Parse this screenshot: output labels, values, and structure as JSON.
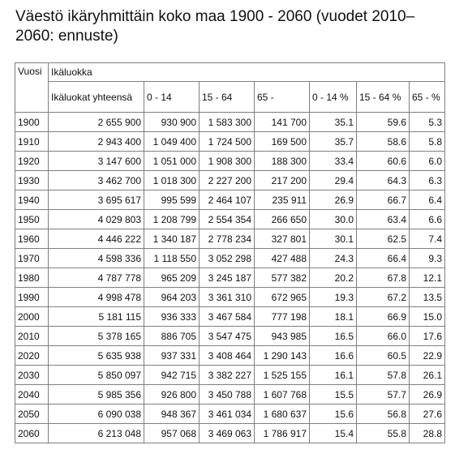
{
  "title": "Väestö ikäryhmittäin koko maa 1900 - 2060 (vuodet 2010–2060: ennuste)",
  "headers": {
    "year": "Vuosi",
    "group": "Ikäluokka",
    "cols": [
      "Ikäluokat yhteensä",
      "0 - 14",
      "15 - 64",
      "65 -",
      "0 - 14 %",
      "15 - 64 %",
      "65 - %"
    ]
  },
  "rows": [
    [
      "1900",
      "2 655 900",
      "930 900",
      "1 583 300",
      "141 700",
      "35.1",
      "59.6",
      "5.3"
    ],
    [
      "1910",
      "2 943 400",
      "1 049 400",
      "1 724 500",
      "169 500",
      "35.7",
      "58.6",
      "5.8"
    ],
    [
      "1920",
      "3 147 600",
      "1 051 000",
      "1 908 300",
      "188 300",
      "33.4",
      "60.6",
      "6.0"
    ],
    [
      "1930",
      "3 462 700",
      "1 018 300",
      "2 227 200",
      "217 200",
      "29.4",
      "64.3",
      "6.3"
    ],
    [
      "1940",
      "3 695 617",
      "995 599",
      "2 464 107",
      "235 911",
      "26.9",
      "66.7",
      "6.4"
    ],
    [
      "1950",
      "4 029 803",
      "1 208 799",
      "2 554 354",
      "266 650",
      "30.0",
      "63.4",
      "6.6"
    ],
    [
      "1960",
      "4 446 222",
      "1 340 187",
      "2 778 234",
      "327 801",
      "30.1",
      "62.5",
      "7.4"
    ],
    [
      "1970",
      "4 598 336",
      "1 118 550",
      "3 052 298",
      "427 488",
      "24.3",
      "66.4",
      "9.3"
    ],
    [
      "1980",
      "4 787 778",
      "965 209",
      "3 245 187",
      "577 382",
      "20.2",
      "67.8",
      "12.1"
    ],
    [
      "1990",
      "4 998 478",
      "964 203",
      "3 361 310",
      "672 965",
      "19.3",
      "67.2",
      "13.5"
    ],
    [
      "2000",
      "5 181 115",
      "936 333",
      "3 467 584",
      "777 198",
      "18.1",
      "66.9",
      "15.0"
    ],
    [
      "2010",
      "5 378 165",
      "886 705",
      "3 547 475",
      "943 985",
      "16.5",
      "66.0",
      "17.6"
    ],
    [
      "2020",
      "5 635 938",
      "937 331",
      "3 408 464",
      "1 290 143",
      "16.6",
      "60.5",
      "22.9"
    ],
    [
      "2030",
      "5 850 097",
      "942 715",
      "3 382 227",
      "1 525 155",
      "16.1",
      "57.8",
      "26.1"
    ],
    [
      "2040",
      "5 985 356",
      "926 800",
      "3 450 788",
      "1 607 768",
      "15.5",
      "57.7",
      "26.9"
    ],
    [
      "2050",
      "6 090 038",
      "948 367",
      "3 461 034",
      "1 680 637",
      "15.6",
      "56.8",
      "27.6"
    ],
    [
      "2060",
      "6 213 048",
      "957 068",
      "3 469 063",
      "1 786 917",
      "15.4",
      "55.8",
      "28.8"
    ]
  ]
}
